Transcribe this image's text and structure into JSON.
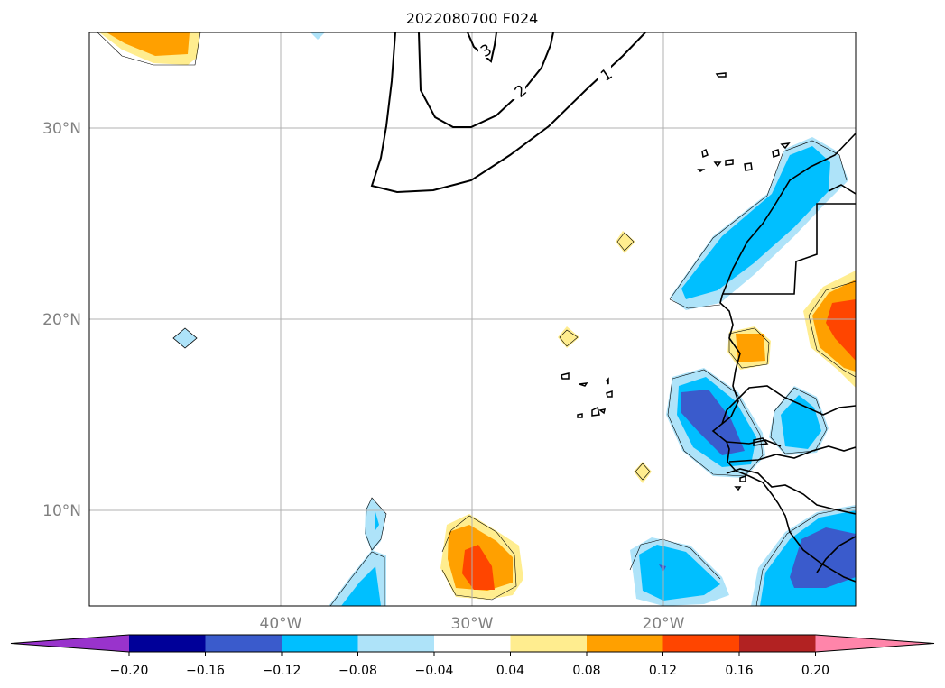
{
  "title": "2022080700 F024",
  "map": {
    "extent": {
      "lon_min": -50,
      "lon_max": -10,
      "lat_min": 5,
      "lat_max": 35
    },
    "lat_ticks": [
      {
        "value": 30,
        "label": "30°N"
      },
      {
        "value": 20,
        "label": "20°N"
      },
      {
        "value": 10,
        "label": "10°N"
      }
    ],
    "lon_ticks": [
      {
        "value": -40,
        "label": "40°W"
      },
      {
        "value": -30,
        "label": "30°W"
      },
      {
        "value": -20,
        "label": "20°W"
      }
    ],
    "gridlines": true,
    "contour_labels": [
      "3",
      "2",
      "1"
    ]
  },
  "colorbar": {
    "orientation": "horizontal",
    "extend": "both",
    "tick_labels": [
      "−0.20",
      "−0.16",
      "−0.12",
      "−0.08",
      "−0.04",
      "0.04",
      "0.08",
      "0.12",
      "0.16",
      "0.20"
    ],
    "colors": [
      "#9933cc",
      "#000099",
      "#3a5bcc",
      "#00bfff",
      "#aee3f9",
      "#ffffff",
      "#ffed8f",
      "#ffa000",
      "#ff4500",
      "#b22222",
      "#ff85aa"
    ]
  }
}
